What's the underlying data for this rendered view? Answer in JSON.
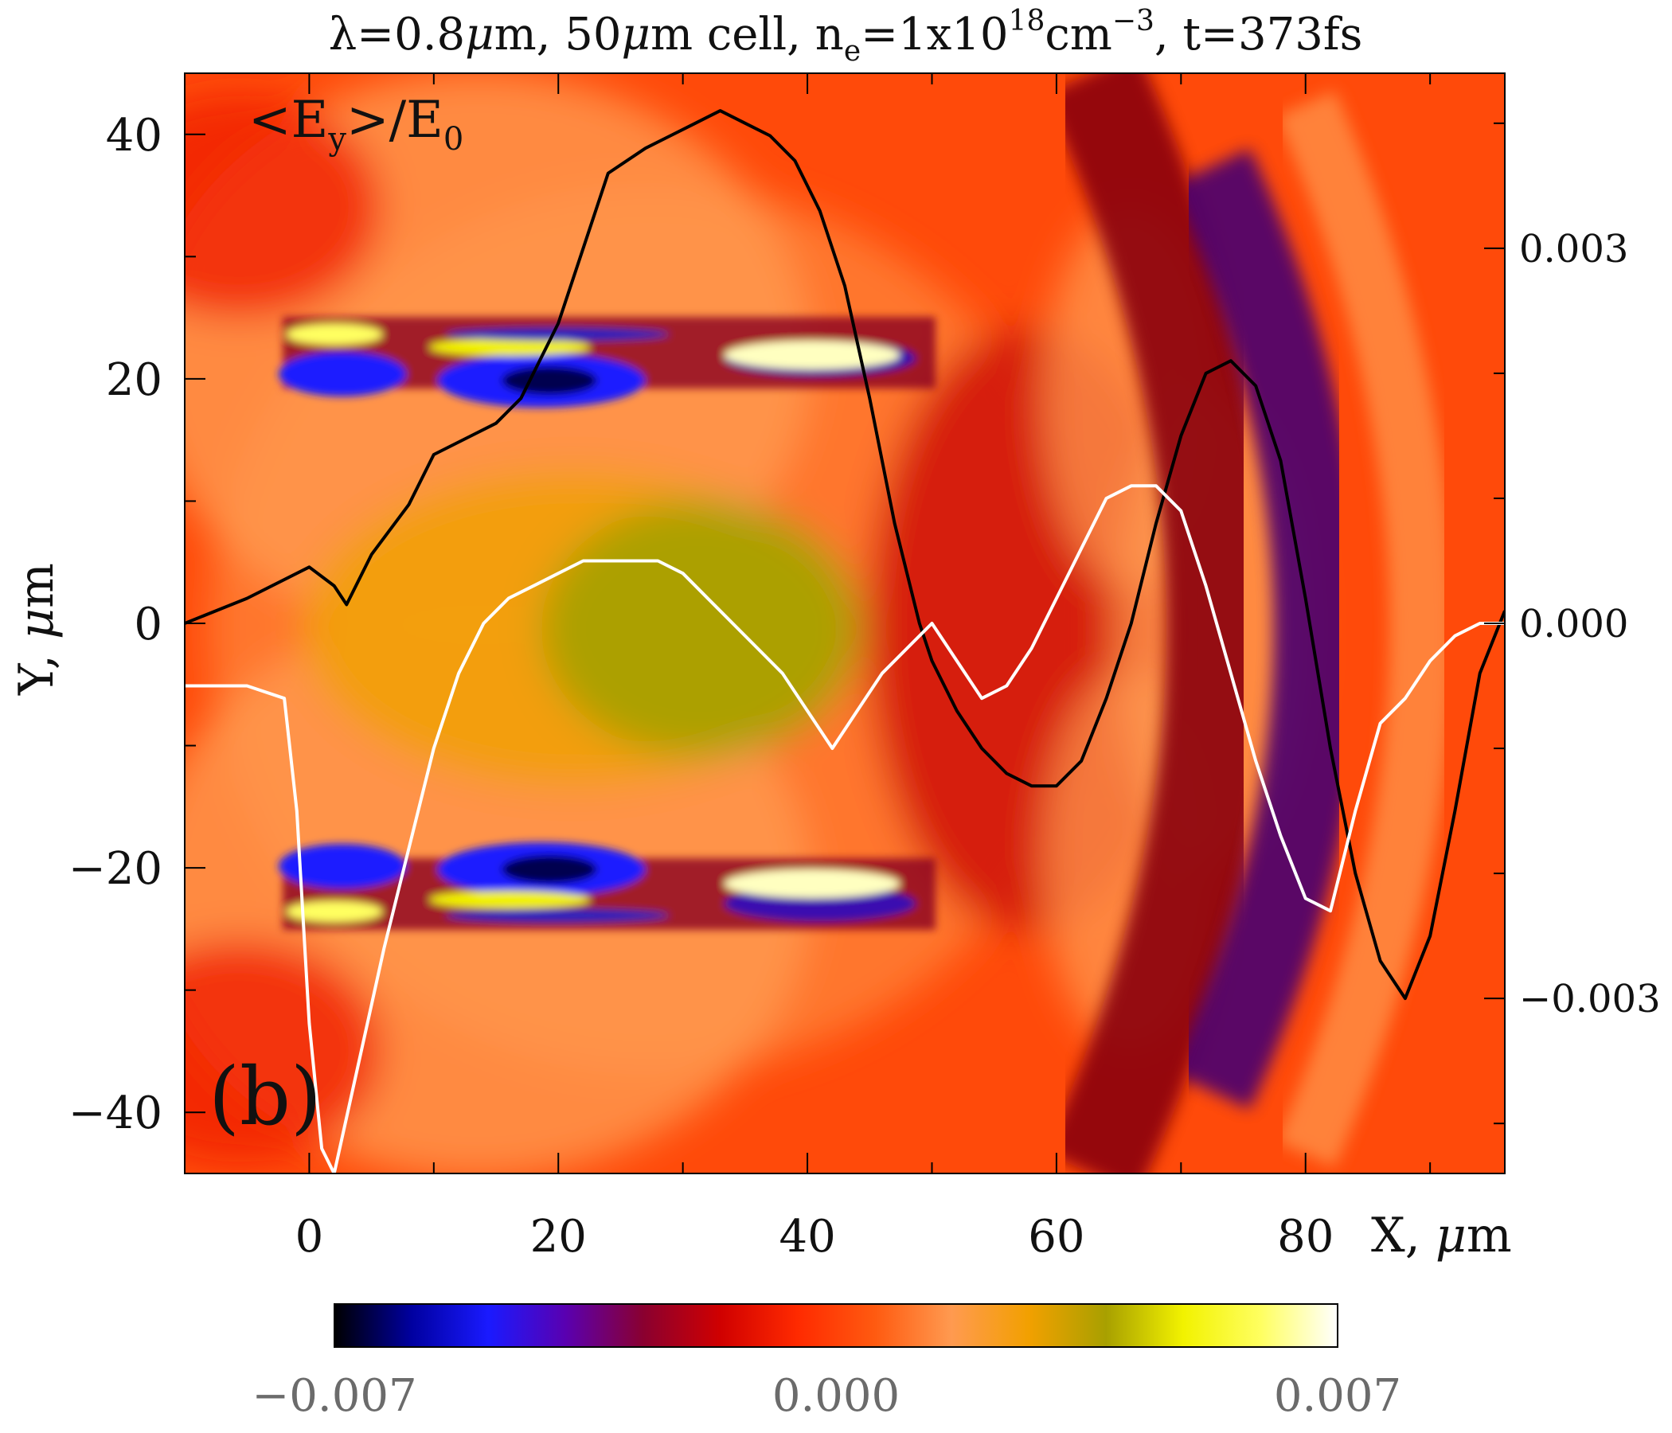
{
  "chart_data": {
    "type": "heatmap",
    "title": {
      "lambda": "λ=0.8",
      "mu1": "μ",
      "part1": "m, 50",
      "mu2": "μ",
      "part2": "m cell, n",
      "ne_sub": "e",
      "part3": "=1x10",
      "exp1": "18",
      "part4": "cm",
      "exp2": "−3",
      "part5": ", t=373fs"
    },
    "field_label": {
      "pre": "<E",
      "sub": "y",
      "mid": ">/E",
      "sub0": "0"
    },
    "panel_label": "(b)",
    "xlabel": {
      "text": "X, ",
      "mu": "μ",
      "unit": "m"
    },
    "ylabel": {
      "text": "Y, ",
      "mu": "μ",
      "unit": "m"
    },
    "xlim": [
      -10,
      96
    ],
    "ylim": [
      -45,
      45
    ],
    "xticks": [
      {
        "value": 0,
        "label": "0"
      },
      {
        "value": 20,
        "label": "20"
      },
      {
        "value": 40,
        "label": "40"
      },
      {
        "value": 60,
        "label": "60"
      },
      {
        "value": 80,
        "label": "80"
      }
    ],
    "yticks": [
      {
        "value": 40,
        "label": "40"
      },
      {
        "value": 20,
        "label": "20"
      },
      {
        "value": 0,
        "label": "0"
      },
      {
        "value": -20,
        "label": "−20"
      },
      {
        "value": -40,
        "label": "−40"
      }
    ],
    "right_axis": {
      "ylim": [
        -0.0044,
        0.0044
      ],
      "ticks": [
        {
          "value": 0.003,
          "label": "0.003"
        },
        {
          "value": 0.0,
          "label": "0.000"
        },
        {
          "value": -0.003,
          "label": "−0.003"
        }
      ]
    },
    "colorbar": {
      "range": [
        -0.007,
        0.007
      ],
      "labels": [
        "−0.007",
        "0.000",
        "0.007"
      ],
      "colormap": [
        "#000000",
        "#0000a0",
        "#1a1aff",
        "#5a00b0",
        "#8a0030",
        "#d00000",
        "#ff2a00",
        "#ff5a10",
        "#ff9a50",
        "#f2a000",
        "#a8a000",
        "#f2f200",
        "#ffff60",
        "#ffffff"
      ]
    },
    "background_color": "#ff4a0a",
    "series": [
      {
        "name": "black curve (right axis)",
        "color": "#000000",
        "x": [
          -10,
          -5,
          0,
          2,
          3,
          5,
          8,
          10,
          13,
          15,
          17,
          20,
          22,
          24,
          27,
          29,
          31,
          33,
          35,
          37,
          39,
          41,
          43,
          45,
          47,
          49,
          50,
          52,
          54,
          56,
          58,
          60,
          62,
          64,
          66,
          68,
          70,
          72,
          74,
          76,
          78,
          80,
          82,
          84,
          86,
          88,
          90,
          92,
          94,
          96
        ],
        "y": [
          0.0,
          0.0002,
          0.00045,
          0.0003,
          0.00015,
          0.00055,
          0.00095,
          0.00135,
          0.0015,
          0.0016,
          0.0018,
          0.0024,
          0.003,
          0.0036,
          0.0038,
          0.0039,
          0.004,
          0.0041,
          0.004,
          0.0039,
          0.0037,
          0.0033,
          0.0027,
          0.0018,
          0.0008,
          0.0,
          -0.0003,
          -0.0007,
          -0.001,
          -0.0012,
          -0.0013,
          -0.0013,
          -0.0011,
          -0.0006,
          0.0,
          0.0008,
          0.0015,
          0.002,
          0.0021,
          0.0019,
          0.0013,
          0.0002,
          -0.001,
          -0.002,
          -0.0027,
          -0.003,
          -0.0025,
          -0.0015,
          -0.0004,
          0.0001
        ]
      },
      {
        "name": "white curve (right axis)",
        "color": "#ffffff",
        "x": [
          -10,
          -5,
          -2,
          -1,
          0,
          1,
          2,
          4,
          6,
          8,
          10,
          12,
          14,
          16,
          18,
          20,
          22,
          24,
          26,
          28,
          30,
          32,
          34,
          36,
          38,
          40,
          42,
          44,
          46,
          48,
          50,
          52,
          54,
          56,
          58,
          60,
          62,
          64,
          66,
          68,
          70,
          72,
          74,
          76,
          78,
          80,
          82,
          84,
          86,
          88,
          90,
          92,
          94,
          96
        ],
        "y": [
          -0.0005,
          -0.0005,
          -0.0006,
          -0.0015,
          -0.0032,
          -0.0042,
          -0.0044,
          -0.0035,
          -0.0026,
          -0.0018,
          -0.001,
          -0.0004,
          0.0,
          0.0002,
          0.0003,
          0.0004,
          0.0005,
          0.0005,
          0.0005,
          0.0005,
          0.0004,
          0.0002,
          0.0,
          -0.0002,
          -0.0004,
          -0.0007,
          -0.001,
          -0.0007,
          -0.0004,
          -0.0002,
          0.0,
          -0.0003,
          -0.0006,
          -0.0005,
          -0.0002,
          0.0002,
          0.0006,
          0.001,
          0.0011,
          0.0011,
          0.0009,
          0.0003,
          -0.0004,
          -0.0011,
          -0.0017,
          -0.0022,
          -0.0023,
          -0.0015,
          -0.0008,
          -0.0006,
          -0.0003,
          -0.0001,
          0.0,
          0.0
        ]
      }
    ]
  }
}
